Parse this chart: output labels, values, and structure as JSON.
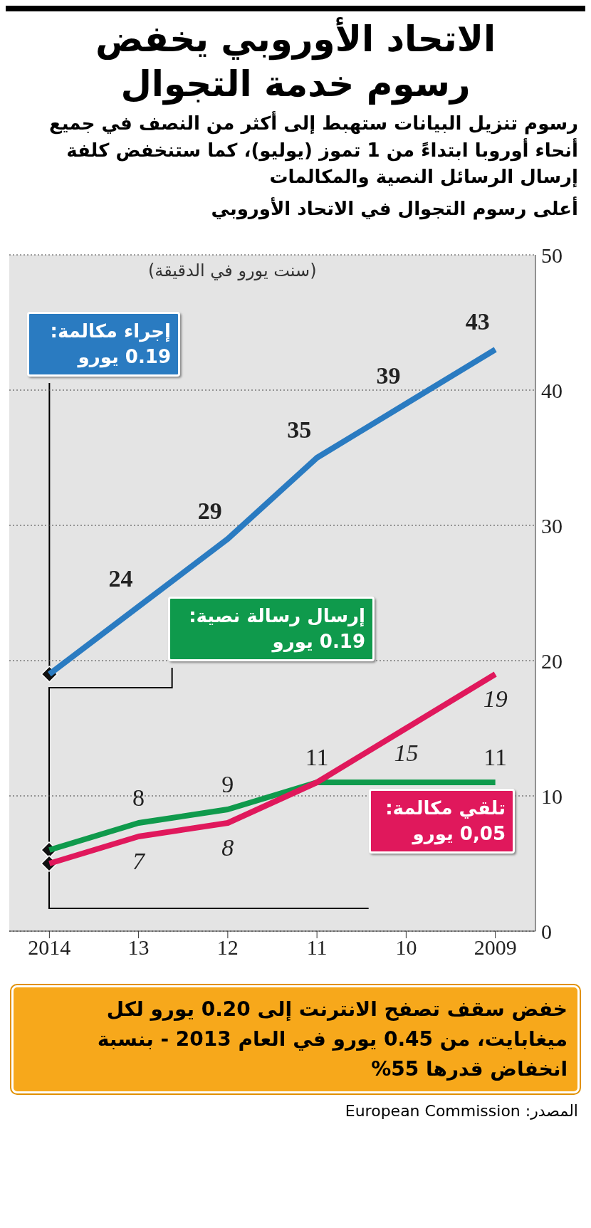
{
  "chart_data": {
    "type": "line",
    "title": "الاتحاد الأوروبي يخفض رسوم خدمة التجوال",
    "subtitle": "رسوم تنزيل البيانات ستهبط إلى أكثر من النصف في جميع أنحاء أوروبا ابتداءً من 1 تموز (يوليو)، كما ستنخفض كلفة إرسال الرسائل النصية والمكالمات",
    "ylabel": "(سنت يورو في الدقيقة)",
    "categories": [
      "2014",
      "13",
      "12",
      "11",
      "10",
      "2009"
    ],
    "series": [
      {
        "name": "إجراء مكالمة:",
        "color": "#2a7bc1",
        "values": [
          19,
          24,
          29,
          35,
          39,
          43
        ],
        "value_labels": [
          null,
          "24",
          "29",
          "35",
          "39",
          "43"
        ]
      },
      {
        "name": "إرسال رسالة نصية:",
        "color": "#0f9a4c",
        "values": [
          6,
          8,
          9,
          11,
          11,
          11
        ],
        "value_labels": [
          null,
          "8",
          "9",
          "11",
          null,
          "11"
        ]
      },
      {
        "name": "تلقي مكالمة:",
        "color": "#e0185c",
        "values": [
          5,
          7,
          8,
          11,
          15,
          19
        ],
        "value_labels": [
          null,
          "7",
          "8",
          null,
          "15",
          "19"
        ]
      }
    ],
    "annotations": [
      "أعلى رسوم التجوال في الاتحاد الأوروبي",
      "0.19 يورو",
      "0.19 يورو",
      "0,05 يورو",
      "خفض سقف تصفح الانترنت إلى 0.20 يورو لكل ميغابايت، من 0.45 يورو في العام 2013 - بنسبة انخفاض قدرها 55%",
      "المصدر: European Commission"
    ],
    "ylim": [
      0,
      50
    ],
    "yticks": [
      0,
      10,
      20,
      30,
      40,
      50
    ],
    "grid": "y",
    "legend": false,
    "line_style": "solid",
    "marker": "none"
  }
}
